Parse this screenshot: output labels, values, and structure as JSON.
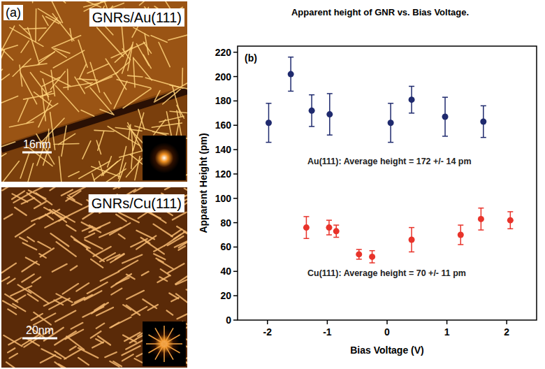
{
  "images": [
    {
      "panel_label": "(a)",
      "title": "GNRs/Au(111)",
      "scale_bar": "16nm"
    },
    {
      "title": "GNRs/Cu(111)",
      "scale_bar": "20nm"
    }
  ],
  "chart_data": {
    "type": "scatter",
    "title": "Apparent height of GNR vs. Bias Voltage.",
    "panel_label": "(b)",
    "x_label": "Bias Voltage (V)",
    "y_label": "Apparent Height (pm)",
    "xlim": [
      -2.5,
      2.5
    ],
    "ylim": [
      0,
      225
    ],
    "xticks": [
      -2,
      -1,
      0,
      1,
      2
    ],
    "yticks": [
      0,
      20,
      40,
      60,
      80,
      100,
      120,
      140,
      160,
      180,
      200,
      220
    ],
    "grid": false,
    "annotations": [
      "Au(111): Average height = 172 +/- 14 pm",
      "Cu(111): Average height = 70 +/- 11 pm"
    ],
    "series": [
      {
        "color": "#1f2a6e",
        "marker": "circle",
        "x": [
          -1.98,
          -1.61,
          -1.26,
          -0.96,
          0.06,
          0.41,
          0.97,
          1.61
        ],
        "values": [
          162,
          202,
          172,
          169,
          162,
          181,
          167,
          163
        ],
        "errors": [
          16,
          14,
          13,
          17,
          16,
          11,
          16,
          13
        ]
      },
      {
        "color": "#e8332a",
        "marker": "circle",
        "x": [
          -1.35,
          -0.97,
          -0.85,
          -0.47,
          -0.25,
          0.41,
          1.23,
          1.57,
          2.06
        ],
        "values": [
          76,
          76,
          73,
          54,
          52,
          66,
          70,
          83,
          82
        ],
        "errors": [
          9,
          6,
          5,
          4,
          5,
          10,
          8,
          9,
          7
        ]
      }
    ]
  }
}
